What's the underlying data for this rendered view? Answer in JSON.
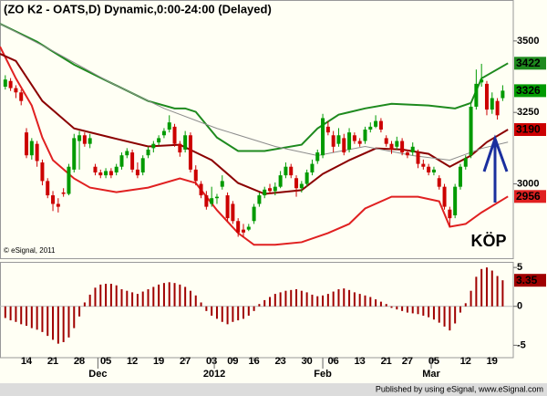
{
  "chart_data": {
    "type": "candlestick",
    "title": "(ZO K2 - OATS,D) Dynamic,0:00-24:00 (Delayed)",
    "copyright": "© eSignal, 2011",
    "footer": "Published by using eSignal, www.eSignal.com",
    "annotation": "KÖP",
    "annotation_color": "#1a2f9e",
    "up_color": "#009a00",
    "down_color": "#cc0000",
    "xlim": [
      -1,
      96
    ],
    "ylim": [
      2740,
      3640
    ],
    "yticks": [
      3500,
      3250,
      3000
    ],
    "xticks": [
      {
        "value": 4,
        "label": "14"
      },
      {
        "value": 9,
        "label": "21"
      },
      {
        "value": 14,
        "label": "28"
      },
      {
        "value": 19,
        "label": "05"
      },
      {
        "value": 24,
        "label": "12"
      },
      {
        "value": 29,
        "label": "19"
      },
      {
        "value": 34,
        "label": "27"
      },
      {
        "value": 39,
        "label": "03"
      },
      {
        "value": 43,
        "label": "09"
      },
      {
        "value": 47,
        "label": "16"
      },
      {
        "value": 52,
        "label": "23"
      },
      {
        "value": 57,
        "label": "30"
      },
      {
        "value": 62,
        "label": "06"
      },
      {
        "value": 67,
        "label": "13"
      },
      {
        "value": 72,
        "label": "21"
      },
      {
        "value": 76,
        "label": "27"
      },
      {
        "value": 81,
        "label": "05"
      },
      {
        "value": 87,
        "label": "12"
      },
      {
        "value": 92,
        "label": "19"
      }
    ],
    "month_ticks": [
      {
        "value": 17.5,
        "label": "Dec"
      },
      {
        "value": 39.5,
        "label": "2012"
      },
      {
        "value": 60,
        "label": "Feb"
      },
      {
        "value": 80.5,
        "label": "Mar"
      }
    ],
    "ohlc": [
      [
        3340,
        3380,
        3330,
        3365
      ],
      [
        3360,
        3370,
        3325,
        3335
      ],
      [
        3335,
        3345,
        3300,
        3320
      ],
      [
        3320,
        3330,
        3275,
        3290
      ],
      [
        3180,
        3195,
        3090,
        3100
      ],
      [
        3100,
        3160,
        3085,
        3150
      ],
      [
        3140,
        3150,
        3060,
        3080
      ],
      [
        3075,
        3085,
        2995,
        3010
      ],
      [
        3010,
        3020,
        2950,
        2960
      ],
      [
        2960,
        2975,
        2905,
        2930
      ],
      [
        2930,
        2950,
        2900,
        2920
      ],
      [
        2970,
        2985,
        2955,
        2965
      ],
      [
        2965,
        3070,
        2960,
        3060
      ],
      [
        3050,
        3175,
        3040,
        3160
      ],
      [
        3150,
        3185,
        3050,
        3170
      ],
      [
        3170,
        3180,
        3130,
        3140
      ],
      [
        3140,
        3175,
        3125,
        3160
      ],
      [
        3060,
        3070,
        3030,
        3040
      ],
      [
        3040,
        3050,
        3020,
        3030
      ],
      [
        3030,
        3055,
        3020,
        3045
      ],
      [
        3045,
        3055,
        3020,
        3030
      ],
      [
        3040,
        3070,
        3030,
        3060
      ],
      [
        3060,
        3110,
        3050,
        3100
      ],
      [
        3100,
        3125,
        3090,
        3115
      ],
      [
        3110,
        3120,
        3040,
        3050
      ],
      [
        3050,
        3075,
        3020,
        3030
      ],
      [
        3040,
        3100,
        3030,
        3090
      ],
      [
        3100,
        3130,
        3090,
        3120
      ],
      [
        3125,
        3150,
        3110,
        3140
      ],
      [
        3145,
        3170,
        3135,
        3160
      ],
      [
        3170,
        3195,
        3160,
        3185
      ],
      [
        3190,
        3240,
        3180,
        3215
      ],
      [
        3200,
        3210,
        3130,
        3140
      ],
      [
        3140,
        3150,
        3095,
        3110
      ],
      [
        3120,
        3185,
        3110,
        3170
      ],
      [
        3170,
        3180,
        3040,
        3050
      ],
      [
        3050,
        3065,
        2995,
        3010
      ],
      [
        3000,
        3010,
        2950,
        2960
      ],
      [
        2960,
        2975,
        2910,
        2920
      ],
      [
        2930,
        2990,
        2920,
        2950
      ],
      [
        2950,
        2965,
        2930,
        2955
      ],
      [
        2990,
        3030,
        2980,
        3010
      ],
      [
        2960,
        2970,
        2870,
        2880
      ],
      [
        2930,
        2940,
        2860,
        2870
      ],
      [
        2870,
        2880,
        2815,
        2830
      ],
      [
        2840,
        2860,
        2815,
        2830
      ],
      [
        2840,
        2860,
        2835,
        2850
      ],
      [
        2870,
        2930,
        2860,
        2920
      ],
      [
        2930,
        2970,
        2920,
        2960
      ],
      [
        2960,
        2990,
        2950,
        2980
      ],
      [
        2985,
        3000,
        2965,
        2975
      ],
      [
        2975,
        3005,
        2960,
        2990
      ],
      [
        2990,
        3045,
        2985,
        3030
      ],
      [
        3030,
        3075,
        3020,
        3060
      ],
      [
        3060,
        3070,
        3020,
        3030
      ],
      [
        3020,
        3030,
        2955,
        2985
      ],
      [
        2985,
        3010,
        2970,
        3000
      ],
      [
        3000,
        3050,
        2990,
        3040
      ],
      [
        3040,
        3085,
        3030,
        3070
      ],
      [
        3080,
        3120,
        3070,
        3110
      ],
      [
        3100,
        3245,
        3090,
        3230
      ],
      [
        3200,
        3220,
        3170,
        3180
      ],
      [
        3170,
        3185,
        3110,
        3130
      ],
      [
        3140,
        3195,
        3130,
        3170
      ],
      [
        3160,
        3175,
        3100,
        3110
      ],
      [
        3120,
        3195,
        3110,
        3180
      ],
      [
        3170,
        3180,
        3140,
        3150
      ],
      [
        3150,
        3160,
        3130,
        3140
      ],
      [
        3150,
        3200,
        3140,
        3190
      ],
      [
        3190,
        3215,
        3180,
        3200
      ],
      [
        3200,
        3240,
        3195,
        3220
      ],
      [
        3220,
        3230,
        3180,
        3190
      ],
      [
        3160,
        3170,
        3130,
        3140
      ],
      [
        3140,
        3150,
        3105,
        3120
      ],
      [
        3130,
        3165,
        3120,
        3150
      ],
      [
        3150,
        3160,
        3100,
        3110
      ],
      [
        3110,
        3120,
        3090,
        3100
      ],
      [
        3110,
        3145,
        3100,
        3130
      ],
      [
        3110,
        3120,
        3055,
        3070
      ],
      [
        3070,
        3085,
        3050,
        3060
      ],
      [
        3060,
        3070,
        3030,
        3040
      ],
      [
        3040,
        3060,
        3030,
        3050
      ],
      [
        3020,
        3030,
        2980,
        2990
      ],
      [
        2990,
        3000,
        2910,
        2920
      ],
      [
        2910,
        2920,
        2850,
        2880
      ],
      [
        2890,
        3000,
        2880,
        2990
      ],
      [
        2990,
        3070,
        2980,
        3060
      ],
      [
        3060,
        3100,
        3050,
        3090
      ],
      [
        3100,
        3280,
        3090,
        3270
      ],
      [
        3270,
        3400,
        3260,
        3350
      ],
      [
        3355,
        3420,
        3340,
        3365
      ],
      [
        3350,
        3360,
        3240,
        3260
      ],
      [
        3260,
        3320,
        3245,
        3300
      ],
      [
        3290,
        3300,
        3225,
        3240
      ],
      [
        3300,
        3345,
        3290,
        3326
      ]
    ],
    "series": [
      {
        "color": "#1e8a1e",
        "x": [
          -1,
          6,
          13,
          20,
          27,
          32,
          34,
          36,
          40,
          44,
          49,
          56,
          59,
          63,
          68,
          73,
          80,
          85,
          88,
          90,
          95
        ],
        "values": [
          3560,
          3497,
          3417,
          3353,
          3290,
          3264,
          3264,
          3252,
          3162,
          3115,
          3115,
          3137,
          3194,
          3242,
          3264,
          3280,
          3274,
          3264,
          3283,
          3369,
          3422
        ]
      },
      {
        "color": "#e02020",
        "x": [
          -1,
          2,
          5,
          7,
          9,
          13,
          16,
          21,
          27,
          33,
          36,
          40,
          44,
          47,
          51,
          56,
          61,
          65,
          68,
          73,
          78,
          82,
          84,
          87,
          90,
          95
        ],
        "values": [
          3480,
          3369,
          3274,
          3162,
          3083,
          3019,
          2987,
          2971,
          2987,
          3019,
          3003,
          2908,
          2828,
          2787,
          2787,
          2796,
          2828,
          2860,
          2914,
          2955,
          2955,
          2939,
          2850,
          2860,
          2900,
          2956
        ]
      },
      {
        "color": "#8b0000",
        "x": [
          -1,
          2,
          7,
          13,
          20,
          27,
          33,
          39,
          44,
          49,
          56,
          60,
          65,
          70,
          75,
          80,
          84,
          88,
          91,
          95
        ],
        "values": [
          3455,
          3430,
          3290,
          3194,
          3162,
          3131,
          3137,
          3083,
          3003,
          2965,
          2978,
          3035,
          3083,
          3124,
          3120,
          3105,
          3060,
          3099,
          3146,
          3190
        ]
      },
      {
        "color": "#8c8c8c",
        "x": [
          -1,
          9,
          20,
          30,
          40,
          51,
          59,
          68,
          77,
          84,
          90,
          95
        ],
        "values": [
          3560,
          3465,
          3353,
          3264,
          3194,
          3131,
          3099,
          3131,
          3099,
          3083,
          3124,
          3146
        ]
      }
    ],
    "histogram": {
      "color": "#a00000",
      "ylim": [
        -6.6,
        5.6
      ],
      "yticks": [
        5,
        0,
        -5
      ],
      "values": [
        -1.5,
        -1.8,
        -2,
        -2.3,
        -2.5,
        -2.8,
        -3,
        -3.3,
        -3.8,
        -4.3,
        -4.8,
        -4.6,
        -4,
        -2.8,
        -1.3,
        0.5,
        1.5,
        2.4,
        2.8,
        2.9,
        2.9,
        2.7,
        2.2,
        2,
        1.8,
        1.6,
        1.9,
        2.2,
        2.5,
        2.8,
        3,
        3.1,
        3,
        2.8,
        2.5,
        2,
        1.4,
        0.5,
        -0.6,
        -1.2,
        -1.6,
        -2,
        -2.3,
        -2,
        -1.8,
        -1.6,
        -1.2,
        -0.6,
        0.3,
        0.8,
        1.2,
        1.6,
        1.8,
        2,
        2.1,
        2.2,
        2,
        1.8,
        1.5,
        1.3,
        1.4,
        1.6,
        1.9,
        2.2,
        2.3,
        2.1,
        1.8,
        1.6,
        1.4,
        1.2,
        0.9,
        0.6,
        0.3,
        -0.2,
        -0.4,
        -0.6,
        -0.8,
        -0.9,
        -1,
        -1.2,
        -1.4,
        -1.7,
        -2.1,
        -2.6,
        -3.1,
        -2.2,
        -0.8,
        0.4,
        2,
        3.8,
        4.8,
        5,
        4.6,
        3.9,
        3.35
      ]
    }
  }
}
